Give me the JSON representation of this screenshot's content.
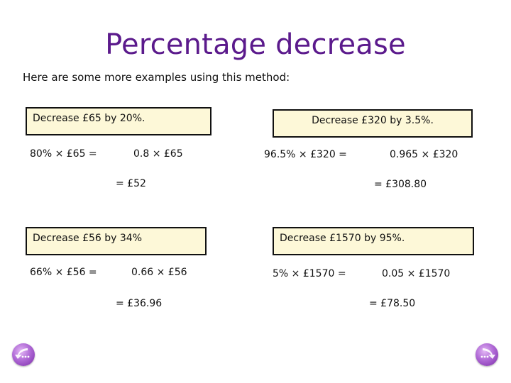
{
  "title": "Percentage decrease",
  "intro": "Here are some more examples using this method:",
  "examples": [
    {
      "heading": "Decrease £65 by 20%.",
      "step1": "80% × £65 =",
      "step2": "0.8 × £65",
      "result": "= £52"
    },
    {
      "heading": "Decrease £320 by 3.5%.",
      "step1": "96.5% × £320 =",
      "step2": "0.965 × £320",
      "result": "= £308.80"
    },
    {
      "heading": "Decrease £56 by 34%",
      "step1": "66% × £56 =",
      "step2": "0.66 × £56",
      "result": "= £36.96"
    },
    {
      "heading": "Decrease £1570 by 95%.",
      "step1": "5% × £1570 =",
      "step2": "0.05 × £1570",
      "result": "= £78.50"
    }
  ],
  "nav": {
    "prev_icon": "back-arrow-icon",
    "next_icon": "forward-arrow-icon"
  },
  "colors": {
    "title": "#5b1a8c",
    "box_fill": "#fdf8d8",
    "nav_button": "#9b4fc8"
  }
}
